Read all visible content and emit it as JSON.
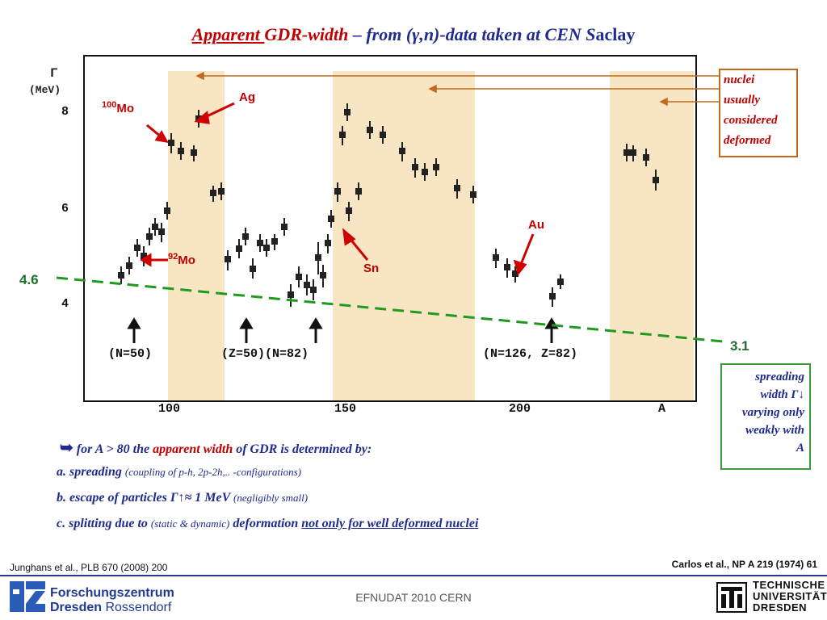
{
  "title": {
    "part1": "Apparent ",
    "part2": "GDR-width",
    "part3": " – from (γ,n)-data taken at CEN S",
    "part4": "aclay"
  },
  "plot": {
    "y_label_1": "Γ",
    "y_label_2": "(MeV)",
    "y_ticks": [
      "8",
      "6",
      "4"
    ],
    "x_ticks": [
      "100",
      "150",
      "200",
      "A"
    ],
    "shells": [
      "(N=50)",
      "(Z=50)(N=82)",
      "(N=126, Z=82)"
    ],
    "nuclei_labels": {
      "mo100_mass": "100",
      "mo100_elem": "Mo",
      "ag": "Ag",
      "mo92_mass": "92",
      "mo92_elem": "Mo",
      "sn": "Sn",
      "au": "Au"
    },
    "trend_left": "4.6",
    "trend_right": "3.1"
  },
  "deformed_box": {
    "lines": [
      "nuclei",
      "usually",
      "considered",
      "deformed"
    ]
  },
  "spreading_box": {
    "line1": "spreading",
    "line2": "width  Γ↓",
    "line3": "varying only",
    "line4": "weakly with",
    "line5": "A"
  },
  "bullets": {
    "arrow": "➥",
    "intro_a": " for A > 80 the ",
    "intro_b": "apparent width",
    "intro_c": " of GDR is determined by:",
    "a_main": "a. spreading ",
    "a_small": "(coupling of p-h, 2p-2h,.. -configurations)",
    "b_main": "b. escape of particles Γ↑≈ 1 MeV ",
    "b_small": "(negligibly small)",
    "c_main": "c. splitting due to ",
    "c_small": "(static & dynamic)",
    "c_main2": " deformation ",
    "c_under": "not only for well deformed nuclei"
  },
  "footer": {
    "left_ref": "Junghans et al., PLB  670 (2008) 200",
    "right_ref": "Carlos et al., NP A 219 (1974) 61",
    "center": "EFNUDAT 2010 CERN",
    "fzd_line1": "Forschungszentrum",
    "fzd_line2a": "Dresden",
    "fzd_line2b": " Rossendorf",
    "tud_line1": "TECHNISCHE",
    "tud_line2": "UNIVERSITÄT",
    "tud_line3": "DRESDEN"
  },
  "colors": {
    "title_blue": "#1f2b8f",
    "accent_red": "#c00000",
    "band_fill": "#f8e5c4",
    "trend_green": "#1f9a1f",
    "box_orange": "#c06a1d"
  }
}
